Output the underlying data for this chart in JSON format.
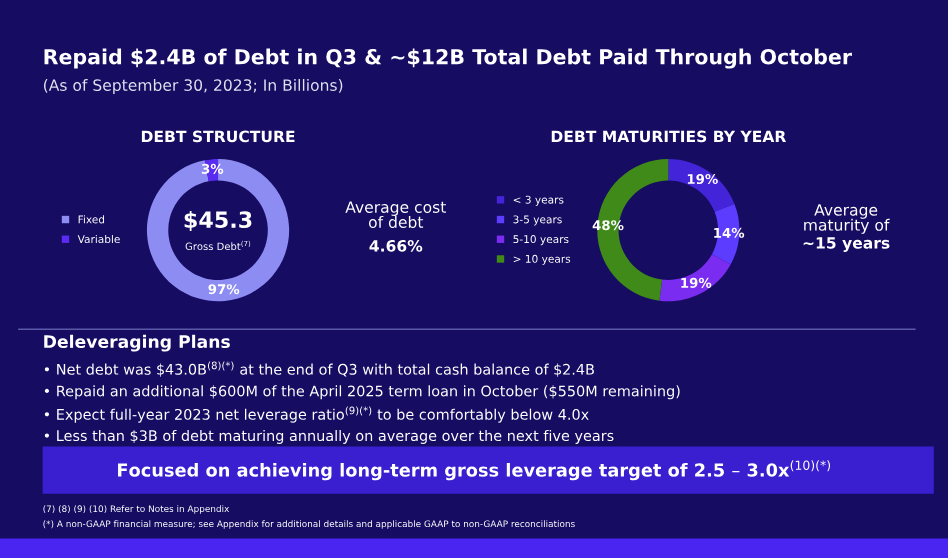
{
  "chart_data": [
    {
      "type": "other",
      "title": "Repaid $2.4B of Debt in Q3 & ~$12B Total Debt Paid Through October",
      "subtitle": "(As of September 30, 2023; In Billions)",
      "annotations": [
        "Deleveraging Plans",
        "• Net debt was $43.0B$^{(8)(*)}$ at the end of Q3 with total cash balance of $2.4B",
        "• Repaid an additional $600M of the April 2025 term loan in October ($550M remaining)",
        "• Expect full-year 2023 net leverage ratio$^{(9)(*)}$ to be comfortably below 4.0x",
        "• Less than $3B of debt maturing annually on average over the next five years",
        "Focused on achieving long-term gross leverage target of 2.5 – 3.0x$^{(10)(*)}$",
        "(7) (8) (9) (10) Refer to Notes in Appendix",
        "(*) A non-GAAP financial measure; see Appendix for additional details and applicable GAAP to non-GAAP reconciliations"
      ]
    },
    {
      "type": "donut",
      "title": "DEBT STRUCTURE",
      "categories": [
        "Fixed",
        "Variable"
      ],
      "values": [
        97,
        3
      ],
      "colors": [
        "#8c8cf2",
        "#5a2cf2"
      ],
      "value_labels": [
        "97%",
        "3%"
      ],
      "legend": "left",
      "annotations": [
        "$45.3",
        "Gross Debt$^{(7)}$",
        "Average cost\nof debt",
        "4.66%"
      ]
    },
    {
      "type": "donut",
      "title": "DEBT MATURITIES BY YEAR",
      "categories": [
        "< 3 years",
        "3-5 years",
        "5-10 years",
        "> 10 years"
      ],
      "values": [
        19,
        14,
        19,
        48
      ],
      "colors": [
        "#4424d8",
        "#5c3cff",
        "#7a2cf0",
        "#3f8a18"
      ],
      "value_labels": [
        "19%",
        "14%",
        "19%",
        "48%"
      ],
      "legend": "left",
      "annotations": [
        "Average\nmaturity of",
        "~15 years"
      ]
    }
  ]
}
